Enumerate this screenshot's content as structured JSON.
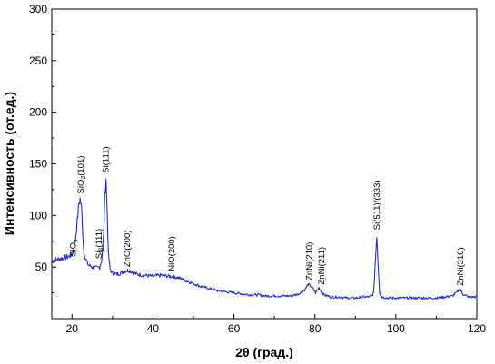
{
  "chart_data": {
    "type": "line",
    "xlabel": "2θ (град.)",
    "ylabel": "Интенсивность (от.ед.)",
    "xlim": [
      15,
      120
    ],
    "ylim": [
      0,
      300
    ],
    "xticks": [
      "20",
      "40",
      "60",
      "80",
      "100",
      "120"
    ],
    "yticks": [
      "50",
      "100",
      "150",
      "200",
      "250",
      "300"
    ],
    "grid": false,
    "line_color": "#1f2fd8",
    "series": [
      {
        "x": [
          15,
          16,
          17,
          18,
          19,
          20,
          20.8,
          21.3,
          21.7,
          22.0,
          22.4,
          22.8,
          23.3,
          24,
          25,
          26,
          26.8,
          27.3,
          27.8,
          28.1,
          28.4,
          28.7,
          29.0,
          29.4,
          30,
          31,
          32,
          33,
          34,
          35,
          36,
          38,
          40,
          42,
          44,
          46,
          48,
          50,
          52,
          54,
          56,
          58,
          60,
          62,
          64,
          66,
          68,
          70,
          72,
          74,
          76,
          77.5,
          78.3,
          79.2,
          80.2,
          81.0,
          81.6,
          82.3,
          84,
          86,
          88,
          90,
          92,
          93.5,
          94.5,
          95.0,
          95.3,
          95.6,
          96.0,
          96.6,
          98,
          100,
          102,
          104,
          106,
          108,
          110,
          112,
          114,
          115.2,
          115.8,
          116.5,
          118,
          120
        ],
        "y": [
          56,
          57,
          58,
          59,
          60,
          62,
          75,
          95,
          112,
          116,
          105,
          70,
          58,
          52,
          50,
          49,
          50,
          56,
          80,
          118,
          137,
          100,
          62,
          48,
          44,
          43,
          44,
          46,
          47,
          45,
          43,
          42,
          41,
          42,
          41,
          40,
          37,
          34,
          31,
          29,
          27,
          26,
          25,
          24,
          23,
          23,
          22,
          22,
          22,
          22,
          24,
          28,
          33,
          31,
          25,
          30,
          26,
          23,
          21,
          21,
          20,
          20,
          21,
          21,
          24,
          60,
          81,
          55,
          25,
          21,
          20,
          20,
          20,
          20,
          20,
          20,
          20,
          21,
          22,
          26,
          29,
          24,
          21,
          21
        ]
      }
    ],
    "annotations": [
      {
        "label": "SiO",
        "sub": "x",
        "x": 21.0,
        "y": 60
      },
      {
        "label": "SiO",
        "sub": "2",
        "tail": "(101)",
        "x": 22.8,
        "y": 121
      },
      {
        "label": "Si(111)",
        "x": 29.0,
        "y": 141
      },
      {
        "label": "Si",
        "sub": "β",
        "tail": "(111)",
        "x": 27.3,
        "y": 58
      },
      {
        "label": "ZnO(200)",
        "x": 34.3,
        "y": 50
      },
      {
        "label": "NiO(200)",
        "x": 45.3,
        "y": 46
      },
      {
        "label": "ZnNi(210)",
        "x": 79.3,
        "y": 37
      },
      {
        "label": "ZnNi(211)",
        "x": 82.3,
        "y": 33
      },
      {
        "label": "Si(511)/(333)",
        "x": 96.0,
        "y": 86
      },
      {
        "label": "ZnNi(310)",
        "x": 116.6,
        "y": 32
      }
    ]
  }
}
